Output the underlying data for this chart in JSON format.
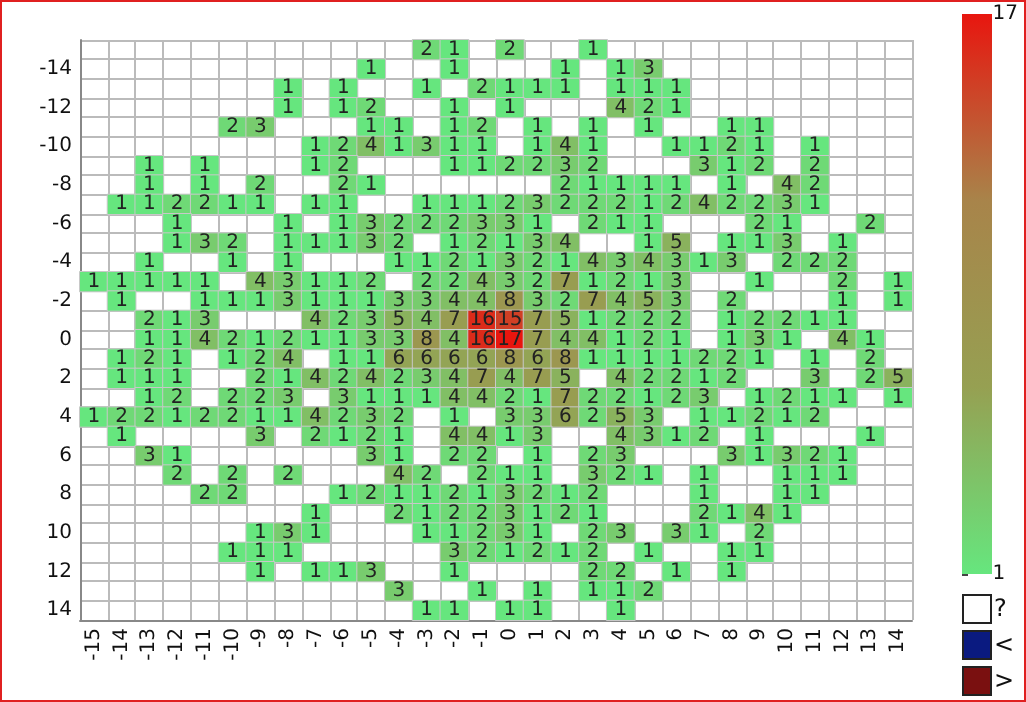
{
  "chart_data": {
    "type": "heatmap",
    "categories": [
      "-15",
      "-14",
      "-13",
      "-12",
      "-11",
      "-10",
      "-9",
      "-8",
      "-7",
      "-6",
      "-5",
      "-4",
      "-3",
      "-2",
      "-1",
      "0",
      "1",
      "2",
      "3",
      "4",
      "5",
      "6",
      "7",
      "8",
      "9",
      "10",
      "11",
      "12",
      "13",
      "14"
    ],
    "y_categories": [
      null,
      "-14",
      null,
      "-12",
      null,
      "-10",
      null,
      "-8",
      null,
      "-6",
      null,
      "-4",
      null,
      "-2",
      null,
      "0",
      null,
      "2",
      null,
      "4",
      null,
      "6",
      null,
      "8",
      null,
      "10",
      null,
      "12",
      null,
      "14"
    ],
    "cells": [
      [
        null,
        null,
        null,
        null,
        null,
        null,
        null,
        null,
        null,
        null,
        null,
        null,
        2,
        1,
        null,
        2,
        null,
        null,
        1,
        null,
        null,
        null,
        null,
        null,
        null,
        null,
        null,
        null,
        null,
        null
      ],
      [
        null,
        null,
        null,
        null,
        null,
        null,
        null,
        null,
        null,
        null,
        1,
        null,
        null,
        1,
        null,
        null,
        null,
        1,
        null,
        1,
        3,
        null,
        null,
        null,
        null,
        null,
        null,
        null,
        null,
        null
      ],
      [
        null,
        null,
        null,
        null,
        null,
        null,
        null,
        1,
        null,
        1,
        null,
        null,
        1,
        null,
        2,
        1,
        1,
        1,
        null,
        1,
        1,
        1,
        null,
        null,
        null,
        null,
        null,
        null,
        null,
        null
      ],
      [
        null,
        null,
        null,
        null,
        null,
        null,
        null,
        1,
        null,
        1,
        2,
        null,
        null,
        1,
        null,
        1,
        null,
        null,
        null,
        4,
        2,
        1,
        null,
        null,
        null,
        null,
        null,
        null,
        null,
        null
      ],
      [
        null,
        null,
        null,
        null,
        null,
        2,
        3,
        null,
        null,
        null,
        1,
        1,
        null,
        1,
        2,
        null,
        1,
        null,
        1,
        null,
        1,
        null,
        null,
        1,
        1,
        null,
        null,
        null,
        null,
        null
      ],
      [
        null,
        null,
        null,
        null,
        null,
        null,
        null,
        null,
        1,
        2,
        4,
        1,
        3,
        1,
        1,
        null,
        1,
        4,
        1,
        null,
        null,
        1,
        1,
        2,
        1,
        null,
        1,
        null,
        null,
        null
      ],
      [
        null,
        null,
        1,
        null,
        1,
        null,
        null,
        null,
        1,
        2,
        null,
        null,
        null,
        1,
        1,
        2,
        2,
        3,
        2,
        null,
        null,
        null,
        3,
        1,
        2,
        null,
        2,
        null,
        null,
        null
      ],
      [
        null,
        null,
        1,
        null,
        1,
        null,
        2,
        null,
        null,
        2,
        1,
        null,
        null,
        null,
        null,
        null,
        null,
        2,
        1,
        1,
        1,
        1,
        null,
        1,
        null,
        4,
        2,
        null,
        null,
        null
      ],
      [
        null,
        1,
        1,
        2,
        2,
        1,
        1,
        null,
        1,
        1,
        null,
        null,
        1,
        1,
        1,
        2,
        3,
        2,
        2,
        2,
        1,
        2,
        4,
        2,
        2,
        3,
        1,
        null,
        null,
        null
      ],
      [
        null,
        null,
        null,
        1,
        null,
        null,
        null,
        1,
        null,
        1,
        3,
        2,
        2,
        2,
        3,
        3,
        1,
        null,
        2,
        1,
        1,
        null,
        null,
        null,
        2,
        1,
        null,
        null,
        2,
        null
      ],
      [
        null,
        null,
        null,
        1,
        3,
        2,
        null,
        1,
        1,
        1,
        3,
        2,
        null,
        1,
        2,
        1,
        3,
        4,
        null,
        null,
        1,
        5,
        null,
        1,
        1,
        3,
        null,
        1,
        null,
        null
      ],
      [
        null,
        null,
        1,
        null,
        null,
        1,
        null,
        1,
        null,
        null,
        null,
        1,
        1,
        2,
        1,
        3,
        2,
        1,
        4,
        3,
        4,
        3,
        1,
        3,
        null,
        2,
        2,
        2,
        null,
        null
      ],
      [
        1,
        1,
        1,
        1,
        1,
        null,
        4,
        3,
        1,
        1,
        2,
        null,
        2,
        2,
        4,
        3,
        2,
        7,
        1,
        2,
        1,
        3,
        null,
        null,
        1,
        null,
        null,
        2,
        null,
        1
      ],
      [
        null,
        1,
        null,
        null,
        1,
        1,
        1,
        3,
        1,
        1,
        1,
        3,
        3,
        4,
        4,
        8,
        3,
        2,
        7,
        4,
        5,
        3,
        null,
        2,
        null,
        null,
        null,
        1,
        null,
        1
      ],
      [
        null,
        null,
        2,
        1,
        3,
        null,
        null,
        null,
        4,
        2,
        3,
        5,
        4,
        7,
        16,
        15,
        7,
        5,
        1,
        2,
        2,
        2,
        null,
        1,
        2,
        2,
        1,
        1,
        null,
        null
      ],
      [
        null,
        null,
        1,
        1,
        4,
        2,
        1,
        2,
        1,
        1,
        3,
        3,
        8,
        4,
        16,
        17,
        7,
        4,
        4,
        1,
        2,
        1,
        null,
        1,
        3,
        1,
        null,
        4,
        1,
        null
      ],
      [
        null,
        1,
        2,
        1,
        null,
        1,
        2,
        4,
        null,
        1,
        1,
        6,
        6,
        6,
        6,
        8,
        6,
        8,
        1,
        1,
        1,
        1,
        2,
        2,
        1,
        null,
        1,
        null,
        2,
        null
      ],
      [
        null,
        1,
        1,
        1,
        null,
        null,
        2,
        1,
        4,
        2,
        4,
        2,
        3,
        4,
        7,
        4,
        7,
        5,
        null,
        4,
        2,
        2,
        1,
        2,
        null,
        null,
        3,
        null,
        2,
        5
      ],
      [
        null,
        null,
        1,
        2,
        null,
        2,
        2,
        3,
        null,
        3,
        1,
        1,
        1,
        4,
        4,
        2,
        1,
        7,
        2,
        2,
        1,
        2,
        3,
        null,
        1,
        2,
        1,
        1,
        null,
        1
      ],
      [
        1,
        2,
        2,
        1,
        2,
        2,
        1,
        1,
        4,
        2,
        3,
        2,
        null,
        1,
        null,
        3,
        3,
        6,
        2,
        5,
        3,
        null,
        1,
        1,
        2,
        1,
        2,
        null,
        null,
        null
      ],
      [
        null,
        1,
        null,
        null,
        null,
        null,
        3,
        null,
        2,
        1,
        2,
        1,
        null,
        4,
        4,
        1,
        3,
        null,
        null,
        4,
        3,
        1,
        2,
        null,
        1,
        null,
        null,
        null,
        1,
        null
      ],
      [
        null,
        null,
        3,
        1,
        null,
        null,
        null,
        null,
        null,
        null,
        3,
        1,
        null,
        2,
        2,
        null,
        1,
        null,
        2,
        3,
        null,
        null,
        null,
        3,
        1,
        3,
        2,
        1,
        null,
        null
      ],
      [
        null,
        null,
        null,
        2,
        null,
        2,
        null,
        2,
        null,
        null,
        null,
        4,
        2,
        null,
        2,
        1,
        1,
        null,
        3,
        2,
        1,
        null,
        1,
        null,
        null,
        1,
        1,
        1,
        null,
        null
      ],
      [
        null,
        null,
        null,
        null,
        2,
        2,
        null,
        null,
        null,
        1,
        2,
        1,
        1,
        2,
        1,
        3,
        2,
        1,
        2,
        null,
        null,
        null,
        1,
        null,
        null,
        1,
        1,
        null,
        null,
        null
      ],
      [
        null,
        null,
        null,
        null,
        null,
        null,
        null,
        null,
        1,
        null,
        null,
        2,
        1,
        2,
        2,
        3,
        1,
        2,
        1,
        null,
        null,
        null,
        2,
        1,
        4,
        1,
        null,
        null,
        null,
        null
      ],
      [
        null,
        null,
        null,
        null,
        null,
        null,
        1,
        3,
        1,
        null,
        null,
        null,
        1,
        1,
        2,
        3,
        1,
        null,
        2,
        3,
        null,
        3,
        1,
        null,
        2,
        null,
        null,
        null,
        null,
        null
      ],
      [
        null,
        null,
        null,
        null,
        null,
        1,
        1,
        1,
        null,
        null,
        null,
        null,
        null,
        3,
        2,
        1,
        2,
        1,
        2,
        null,
        1,
        null,
        null,
        1,
        1,
        null,
        null,
        null,
        null,
        null
      ],
      [
        null,
        null,
        null,
        null,
        null,
        null,
        1,
        null,
        1,
        1,
        3,
        null,
        null,
        1,
        null,
        null,
        null,
        null,
        2,
        2,
        null,
        1,
        null,
        1,
        null,
        null,
        null,
        null,
        null,
        null
      ],
      [
        null,
        null,
        null,
        null,
        null,
        null,
        null,
        null,
        null,
        null,
        null,
        3,
        null,
        null,
        1,
        null,
        1,
        null,
        1,
        1,
        2,
        null,
        null,
        null,
        null,
        null,
        null,
        null,
        null,
        null
      ],
      [
        null,
        null,
        null,
        null,
        null,
        null,
        null,
        null,
        null,
        null,
        null,
        null,
        1,
        1,
        null,
        1,
        1,
        null,
        null,
        1,
        null,
        null,
        null,
        null,
        null,
        null,
        null,
        null,
        null,
        null
      ]
    ],
    "clim": [
      1,
      17
    ],
    "cticks": [
      1,
      17
    ],
    "data_labels": true,
    "grid": true,
    "annotations": [
      "?",
      "<",
      ">"
    ]
  }
}
